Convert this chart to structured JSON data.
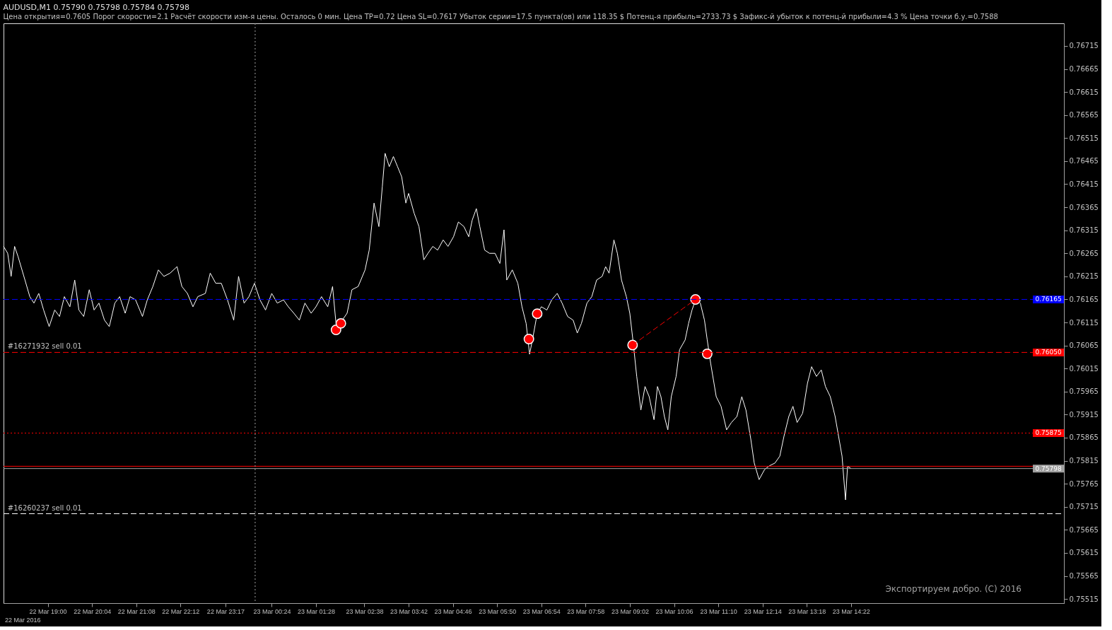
{
  "chart_data": {
    "type": "line",
    "title": "AUDUSD,M1  0.75790 0.75798 0.75784 0.75798",
    "subtitle": "Цена открытия=0.7605    Порог скорости=2.1    Расчёт скорости изм-я цены. Осталось 0 мин.    Цена TP=0.72    Цена SL=0.7617    Убыток серии=17.5 пункта(ов) или 118.35 $    Потенц-я прибыль=2733.73 $    Зафикс-й убыток к потенц-й прибыли=4.3 %    Цена точки б.у.=0.7588",
    "series": [
      {
        "color": "#ffffff",
        "x": [
          "2016-03-22T17:56",
          "2016-03-22T18:02",
          "2016-03-22T18:07",
          "2016-03-22T18:12",
          "2016-03-22T18:17",
          "2016-03-22T18:27",
          "2016-03-22T18:34",
          "2016-03-22T18:40",
          "2016-03-22T18:47",
          "2016-03-22T18:54",
          "2016-03-22T19:02",
          "2016-03-22T19:10",
          "2016-03-22T19:17",
          "2016-03-22T19:24",
          "2016-03-22T19:32",
          "2016-03-22T19:39",
          "2016-03-22T19:45",
          "2016-03-22T19:52",
          "2016-03-22T20:00",
          "2016-03-22T20:07",
          "2016-03-22T20:14",
          "2016-03-22T20:22",
          "2016-03-22T20:29",
          "2016-03-22T20:37",
          "2016-03-22T20:44",
          "2016-03-22T20:52",
          "2016-03-22T20:59",
          "2016-03-22T21:07",
          "2016-03-22T21:17",
          "2016-03-22T21:24",
          "2016-03-22T21:32",
          "2016-03-22T21:40",
          "2016-03-22T21:48",
          "2016-03-22T21:57",
          "2016-03-22T22:07",
          "2016-03-22T22:14",
          "2016-03-22T22:22",
          "2016-03-22T22:30",
          "2016-03-22T22:37",
          "2016-03-22T22:48",
          "2016-03-22T22:55",
          "2016-03-22T23:03",
          "2016-03-22T23:11",
          "2016-03-22T23:20",
          "2016-03-22T23:29",
          "2016-03-22T23:36",
          "2016-03-22T23:44",
          "2016-03-22T23:51",
          "2016-03-22T23:59",
          "2016-03-23T00:07",
          "2016-03-23T00:15",
          "2016-03-23T00:24",
          "2016-03-23T00:32",
          "2016-03-23T00:41",
          "2016-03-23T00:48",
          "2016-03-23T00:56",
          "2016-03-23T01:04",
          "2016-03-23T01:12",
          "2016-03-23T01:21",
          "2016-03-23T01:28",
          "2016-03-23T01:36",
          "2016-03-23T01:45",
          "2016-03-23T01:52",
          "2016-03-23T01:58",
          "2016-03-23T02:06",
          "2016-03-23T02:13",
          "2016-03-23T02:20",
          "2016-03-23T02:29",
          "2016-03-23T02:39",
          "2016-03-23T02:45",
          "2016-03-23T02:52",
          "2016-03-23T02:59",
          "2016-03-23T03:04",
          "2016-03-23T03:08",
          "2016-03-23T03:14",
          "2016-03-23T03:20",
          "2016-03-23T03:26",
          "2016-03-23T03:32",
          "2016-03-23T03:38",
          "2016-03-23T03:42",
          "2016-03-23T03:50",
          "2016-03-23T03:57",
          "2016-03-23T04:04",
          "2016-03-23T04:10",
          "2016-03-23T04:17",
          "2016-03-23T04:24",
          "2016-03-23T04:32",
          "2016-03-23T04:39",
          "2016-03-23T04:47",
          "2016-03-23T04:54",
          "2016-03-23T05:02",
          "2016-03-23T05:09",
          "2016-03-23T05:14",
          "2016-03-23T05:20",
          "2016-03-23T05:25",
          "2016-03-23T05:32",
          "2016-03-23T05:39",
          "2016-03-23T05:47",
          "2016-03-23T05:54",
          "2016-03-23T06:00",
          "2016-03-23T06:04",
          "2016-03-23T06:12",
          "2016-03-23T06:20",
          "2016-03-23T06:26",
          "2016-03-23T06:32",
          "2016-03-23T06:37",
          "2016-03-23T06:42",
          "2016-03-23T06:48",
          "2016-03-23T06:54",
          "2016-03-23T07:02",
          "2016-03-23T07:09",
          "2016-03-23T07:17",
          "2016-03-23T07:24",
          "2016-03-23T07:32",
          "2016-03-23T07:40",
          "2016-03-23T07:46",
          "2016-03-23T07:52",
          "2016-03-23T08:00",
          "2016-03-23T08:07",
          "2016-03-23T08:14",
          "2016-03-23T08:22",
          "2016-03-23T08:27",
          "2016-03-23T08:32",
          "2016-03-23T08:39",
          "2016-03-23T08:44",
          "2016-03-23T08:50",
          "2016-03-23T08:57",
          "2016-03-23T09:02",
          "2016-03-23T09:07",
          "2016-03-23T09:12",
          "2016-03-23T09:18",
          "2016-03-23T09:24",
          "2016-03-23T09:30",
          "2016-03-23T09:37",
          "2016-03-23T09:42",
          "2016-03-23T09:47",
          "2016-03-23T09:52",
          "2016-03-23T09:57",
          "2016-03-23T10:02",
          "2016-03-23T10:09",
          "2016-03-23T10:14",
          "2016-03-23T10:22",
          "2016-03-23T10:27",
          "2016-03-23T10:32",
          "2016-03-23T10:38",
          "2016-03-23T10:44",
          "2016-03-23T10:50",
          "2016-03-23T10:54",
          "2016-03-23T10:59",
          "2016-03-23T11:07",
          "2016-03-23T11:14",
          "2016-03-23T11:22",
          "2016-03-23T11:29",
          "2016-03-23T11:37",
          "2016-03-23T11:44",
          "2016-03-23T11:50",
          "2016-03-23T11:57",
          "2016-03-23T12:02",
          "2016-03-23T12:09",
          "2016-03-23T12:17",
          "2016-03-23T12:24",
          "2016-03-23T12:32",
          "2016-03-23T12:39",
          "2016-03-23T12:45",
          "2016-03-23T12:52",
          "2016-03-23T12:58",
          "2016-03-23T13:04",
          "2016-03-23T13:12",
          "2016-03-23T13:19",
          "2016-03-23T13:25",
          "2016-03-23T13:32",
          "2016-03-23T13:39",
          "2016-03-23T13:45",
          "2016-03-23T13:52",
          "2016-03-23T13:59",
          "2016-03-23T14:04",
          "2016-03-23T14:09",
          "2016-03-23T14:14",
          "2016-03-23T14:17",
          "2016-03-23T14:22"
        ],
        "values": [
          0.7628,
          0.76265,
          0.76215,
          0.7628,
          0.76258,
          0.76207,
          0.76171,
          0.76157,
          0.76178,
          0.76142,
          0.76106,
          0.76142,
          0.76128,
          0.76171,
          0.76149,
          0.76207,
          0.76142,
          0.76128,
          0.76186,
          0.76142,
          0.76157,
          0.7612,
          0.76106,
          0.76157,
          0.76171,
          0.76135,
          0.76171,
          0.76164,
          0.76128,
          0.76164,
          0.76193,
          0.76229,
          0.76215,
          0.76222,
          0.76236,
          0.76193,
          0.76178,
          0.76149,
          0.76171,
          0.76178,
          0.76222,
          0.762,
          0.762,
          0.76164,
          0.7612,
          0.76215,
          0.76157,
          0.76171,
          0.762,
          0.76164,
          0.76142,
          0.76178,
          0.76157,
          0.76164,
          0.76149,
          0.76135,
          0.7612,
          0.76157,
          0.76135,
          0.76149,
          0.76171,
          0.76149,
          0.76193,
          0.76096,
          0.7612,
          0.76135,
          0.76186,
          0.76193,
          0.76229,
          0.76272,
          0.76374,
          0.76323,
          0.7641,
          0.76482,
          0.76453,
          0.76475,
          0.76453,
          0.76431,
          0.76374,
          0.76395,
          0.76352,
          0.76323,
          0.76251,
          0.76265,
          0.7628,
          0.76272,
          0.76294,
          0.7628,
          0.76301,
          0.76333,
          0.76323,
          0.76301,
          0.76337,
          0.76362,
          0.76323,
          0.76272,
          0.76265,
          0.76265,
          0.76243,
          0.76316,
          0.76207,
          0.76229,
          0.762,
          0.76149,
          0.76113,
          0.76046,
          0.76084,
          0.76134,
          0.76149,
          0.76142,
          0.76164,
          0.76178,
          0.76157,
          0.76128,
          0.7612,
          0.76092,
          0.76113,
          0.76157,
          0.76171,
          0.76207,
          0.76215,
          0.76236,
          0.76222,
          0.76294,
          0.76265,
          0.76207,
          0.76171,
          0.76135,
          0.7607,
          0.75998,
          0.75925,
          0.75976,
          0.75954,
          0.75904,
          0.75976,
          0.75954,
          0.75911,
          0.75882,
          0.75954,
          0.75998,
          0.76056,
          0.76077,
          0.76113,
          0.76142,
          0.76168,
          0.76157,
          0.7612,
          0.76077,
          0.76026,
          0.75954,
          0.75933,
          0.75882,
          0.75898,
          0.75911,
          0.75954,
          0.75925,
          0.75862,
          0.7581,
          0.75774,
          0.75796,
          0.75804,
          0.7581,
          0.75825,
          0.75868,
          0.75911,
          0.75933,
          0.75898,
          0.75918,
          0.75983,
          0.76019,
          0.75998,
          0.76012,
          0.75976,
          0.75954,
          0.75911,
          0.75868,
          0.75825,
          0.7573,
          0.75803,
          0.75798
        ]
      },
      {
        "type": "scatter",
        "color": "#ff0000",
        "marker": "circle",
        "x": [
          "2016-03-23T01:57",
          "2016-03-23T02:04",
          "2016-03-23T06:36",
          "2016-03-23T06:48",
          "2016-03-23T09:06",
          "2016-03-23T10:37",
          "2016-03-23T10:54"
        ],
        "values": [
          0.76099,
          0.76113,
          0.76079,
          0.76134,
          0.76066,
          0.76165,
          0.76047
        ]
      },
      {
        "color": "#ff0000",
        "line_style": "dashed",
        "x": [
          "2016-03-23T09:06",
          "2016-03-23T10:37"
        ],
        "values": [
          0.76066,
          0.76165
        ]
      }
    ],
    "xlim": [
      "2016-03-22T17:56",
      "2016-03-23T19:30"
    ],
    "ylim": [
      0.75506,
      0.76764
    ],
    "xticks": [
      {
        "value": "2016-03-22T19:00",
        "label": "22 Mar 19:00"
      },
      {
        "value": "2016-03-22T20:04",
        "label": "22 Mar 20:04"
      },
      {
        "value": "2016-03-22T21:08",
        "label": "22 Mar 21:08"
      },
      {
        "value": "2016-03-22T22:12",
        "label": "22 Mar 22:12"
      },
      {
        "value": "2016-03-22T23:17",
        "label": "22 Mar 23:17"
      },
      {
        "value": "2016-03-23T00:24",
        "label": "23 Mar 00:24"
      },
      {
        "value": "2016-03-23T01:28",
        "label": "23 Mar 01:28"
      },
      {
        "value": "2016-03-23T02:38",
        "label": "23 Mar 02:38"
      },
      {
        "value": "2016-03-23T03:42",
        "label": "23 Mar 03:42"
      },
      {
        "value": "2016-03-23T04:46",
        "label": "23 Mar 04:46"
      },
      {
        "value": "2016-03-23T05:50",
        "label": "23 Mar 05:50"
      },
      {
        "value": "2016-03-23T06:54",
        "label": "23 Mar 06:54"
      },
      {
        "value": "2016-03-23T07:58",
        "label": "23 Mar 07:58"
      },
      {
        "value": "2016-03-23T09:02",
        "label": "23 Mar 09:02"
      },
      {
        "value": "2016-03-23T10:06",
        "label": "23 Mar 10:06"
      },
      {
        "value": "2016-03-23T11:10",
        "label": "23 Mar 11:10"
      },
      {
        "value": "2016-03-23T12:14",
        "label": "23 Mar 12:14"
      },
      {
        "value": "2016-03-23T13:18",
        "label": "23 Mar 13:18"
      },
      {
        "value": "2016-03-23T14:22",
        "label": "23 Mar 14:22"
      }
    ],
    "yticks": [
      0.75515,
      0.75565,
      0.75615,
      0.75665,
      0.75715,
      0.75765,
      0.75815,
      0.75865,
      0.75915,
      0.75965,
      0.76015,
      0.76065,
      0.76115,
      0.76165,
      0.76215,
      0.76265,
      0.76315,
      0.76365,
      0.76415,
      0.76465,
      0.76515,
      0.76565,
      0.76615,
      0.76665,
      0.76715
    ],
    "ref_lines": [
      {
        "axis": "y",
        "value": 0.76165,
        "label": "0.76165",
        "color": "#0000ff",
        "line_style": "dashed"
      },
      {
        "axis": "y",
        "value": 0.7605,
        "label": "0.76050",
        "color": "#ff0000",
        "line_style": "dashed"
      },
      {
        "axis": "y",
        "value": 0.75875,
        "label": "0.75875",
        "color": "#ff0000",
        "line_style": "dotted"
      },
      {
        "axis": "y",
        "value": 0.75803,
        "color": "#ff0000",
        "line_style": "solid"
      },
      {
        "axis": "y",
        "value": 0.75798,
        "label": "0.75798",
        "color": "#a0a0a0",
        "line_style": "solid"
      },
      {
        "axis": "y",
        "value": 0.757,
        "color": "#ffffff",
        "line_style": "dashed"
      },
      {
        "axis": "x",
        "value": "2016-03-23T00:00",
        "color": "#a0a0a0",
        "line_style": "dotted"
      }
    ],
    "annotations": [
      "22 Mar 2016",
      {
        "text": "#16271932 sell 0.01",
        "x": "2016-03-22T18:02",
        "y": 0.7605
      },
      {
        "text": "#16260237 sell 0.01",
        "x": "2016-03-22T18:02",
        "y": 0.757
      },
      "Экспортируем добро. (C) 2016"
    ],
    "grid": false
  }
}
